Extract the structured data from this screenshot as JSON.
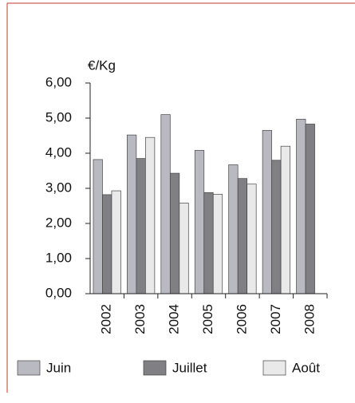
{
  "chart_data": {
    "type": "bar",
    "y_label": "€/Kg",
    "categories": [
      "2002",
      "2003",
      "2004",
      "2005",
      "2006",
      "2007",
      "2008"
    ],
    "series": [
      {
        "name": "Juin",
        "color": "#b9bac1",
        "values": [
          3.82,
          4.52,
          5.1,
          4.08,
          3.67,
          4.65,
          4.97
        ]
      },
      {
        "name": "Juillet",
        "color": "#808084",
        "values": [
          2.82,
          3.85,
          3.43,
          2.88,
          3.28,
          3.8,
          4.83
        ]
      },
      {
        "name": "Août",
        "color": "#e9e9ea",
        "values": [
          2.93,
          4.45,
          2.58,
          2.83,
          3.12,
          4.2,
          null
        ]
      }
    ],
    "ylim": [
      0,
      6
    ],
    "yticks": [
      {
        "value": 0,
        "label": "0,00"
      },
      {
        "value": 1,
        "label": "1,00"
      },
      {
        "value": 2,
        "label": "2,00"
      },
      {
        "value": 3,
        "label": "3,00"
      },
      {
        "value": 4,
        "label": "4,00"
      },
      {
        "value": 5,
        "label": "5,00"
      },
      {
        "value": 6,
        "label": "6,00"
      }
    ],
    "legend": "bottom"
  }
}
